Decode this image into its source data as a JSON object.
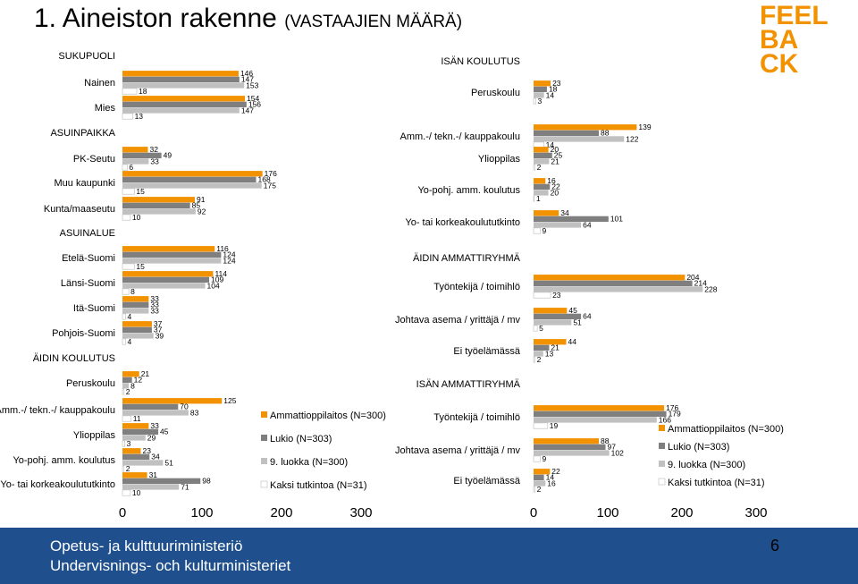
{
  "title": {
    "main": "1. Aineiston rakenne",
    "sub": "(VASTAAJIEN MÄÄRÄ)"
  },
  "logo": [
    "FEEL",
    "BA",
    "CK"
  ],
  "footer": {
    "line1": "Opetus- ja kulttuuriministeriö",
    "line2": "Undervisnings- och kulturministeriet"
  },
  "page_number": "6",
  "colors": {
    "series": [
      "#f39200",
      "#7f7f7f",
      "#c0c0c0",
      "#ffffff"
    ]
  },
  "chart_data": [
    {
      "type": "bar",
      "orientation": "horizontal",
      "xlim": [
        0,
        300
      ],
      "xticks": [
        "0",
        "100",
        "200",
        "300"
      ],
      "legend": [
        "Ammattioppilaitos (N=300)",
        "Lukio (N=303)",
        "9. luokka (N=300)",
        "Kaksi tutkintoa (N=31)"
      ],
      "legend_position": "inside-right",
      "groups": [
        {
          "header": "SUKUPUOLI",
          "categories": [
            {
              "label": "Nainen",
              "values": [
                146,
                147,
                153,
                18
              ]
            },
            {
              "label": "Mies",
              "values": [
                154,
                156,
                147,
                13
              ]
            }
          ]
        },
        {
          "header": "ASUINPAIKKA",
          "categories": [
            {
              "label": "PK-Seutu",
              "values": [
                32,
                49,
                33,
                6
              ]
            },
            {
              "label": "Muu kaupunki",
              "values": [
                176,
                168,
                175,
                15
              ]
            },
            {
              "label": "Kunta/maaseutu",
              "values": [
                91,
                85,
                92,
                10
              ]
            }
          ]
        },
        {
          "header": "ASUINALUE",
          "categories": [
            {
              "label": "Etelä-Suomi",
              "values": [
                116,
                124,
                124,
                15
              ]
            },
            {
              "label": "Länsi-Suomi",
              "values": [
                114,
                109,
                104,
                8
              ]
            },
            {
              "label": "Itä-Suomi",
              "values": [
                33,
                33,
                33,
                4
              ]
            },
            {
              "label": "Pohjois-Suomi",
              "values": [
                37,
                37,
                39,
                4
              ]
            }
          ]
        },
        {
          "header": "ÄIDIN KOULUTUS",
          "categories": [
            {
              "label": "Peruskoulu",
              "values": [
                21,
                12,
                8,
                2
              ]
            },
            {
              "label": "Amm.-/ tekn.-/ kauppakoulu",
              "values": [
                125,
                70,
                83,
                11
              ]
            },
            {
              "label": "Ylioppilas",
              "values": [
                33,
                45,
                29,
                3
              ]
            },
            {
              "label": "Yo-pohj. amm. koulutus",
              "values": [
                23,
                34,
                51,
                2
              ]
            },
            {
              "label": "Yo- tai korkeakoulututkinto",
              "values": [
                31,
                98,
                71,
                10
              ]
            }
          ]
        }
      ]
    },
    {
      "type": "bar",
      "orientation": "horizontal",
      "xlim": [
        0,
        300
      ],
      "xticks": [
        "0",
        "100",
        "200",
        "300"
      ],
      "legend": [
        "Ammattioppilaitos (N=300)",
        "Lukio (N=303)",
        "9. luokka (N=300)",
        "Kaksi tutkintoa (N=31)"
      ],
      "legend_position": "right",
      "groups": [
        {
          "header": "ISÄN KOULUTUS",
          "categories": [
            {
              "label": "Peruskoulu",
              "values": [
                23,
                18,
                14,
                3
              ]
            },
            {
              "label": "Amm.-/ tekn.-/ kauppakoulu",
              "values": [
                139,
                88,
                122,
                14
              ]
            },
            {
              "label": "Ylioppilas",
              "values": [
                20,
                25,
                21,
                2
              ]
            },
            {
              "label": "Yo-pohj. amm. koulutus",
              "values": [
                16,
                22,
                20,
                1
              ]
            },
            {
              "label": "Yo- tai korkeakoulututkinto",
              "values": [
                34,
                101,
                64,
                9
              ]
            }
          ]
        },
        {
          "header": "ÄIDIN AMMATTIRYHMÄ",
          "categories": [
            {
              "label": "Työntekijä / toimihlö",
              "values": [
                204,
                214,
                228,
                23
              ]
            },
            {
              "label": "Johtava asema / yrittäjä / mv",
              "values": [
                45,
                64,
                51,
                5
              ]
            },
            {
              "label": "Ei työelämässä",
              "values": [
                44,
                21,
                13,
                2
              ]
            }
          ]
        },
        {
          "header": "ISÄN AMMATTIRYHMÄ",
          "categories": [
            {
              "label": "Työntekijä / toimihlö",
              "values": [
                176,
                179,
                166,
                19
              ]
            },
            {
              "label": "Johtava asema / yrittäjä / mv",
              "values": [
                88,
                97,
                102,
                9
              ]
            },
            {
              "label": "Ei työelämässä",
              "values": [
                22,
                14,
                16,
                2
              ]
            }
          ]
        }
      ]
    }
  ]
}
